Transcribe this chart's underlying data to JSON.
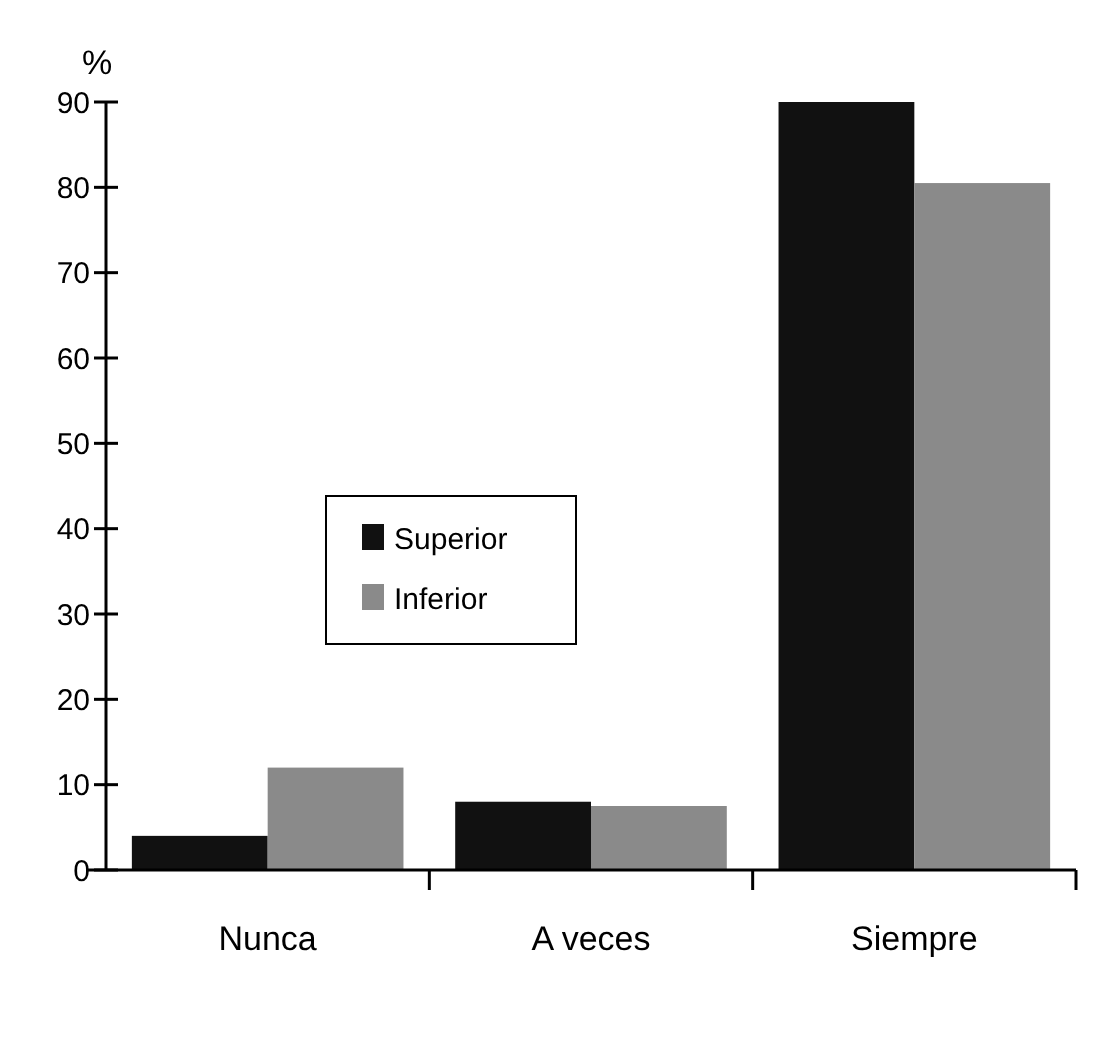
{
  "chart_data": {
    "type": "bar",
    "ylabel": "%",
    "categories": [
      "Nunca",
      "A veces",
      "Siempre"
    ],
    "series": [
      {
        "name": "Superior",
        "color": "#111111",
        "values": [
          4,
          8,
          90
        ]
      },
      {
        "name": "Inferior",
        "color": "#8a8a8a",
        "values": [
          12,
          7.5,
          80.5
        ]
      }
    ],
    "ylim": [
      0,
      90
    ],
    "yticks": [
      0,
      10,
      20,
      30,
      40,
      50,
      60,
      70,
      80,
      90
    ],
    "legend": "left",
    "grid": false
  }
}
